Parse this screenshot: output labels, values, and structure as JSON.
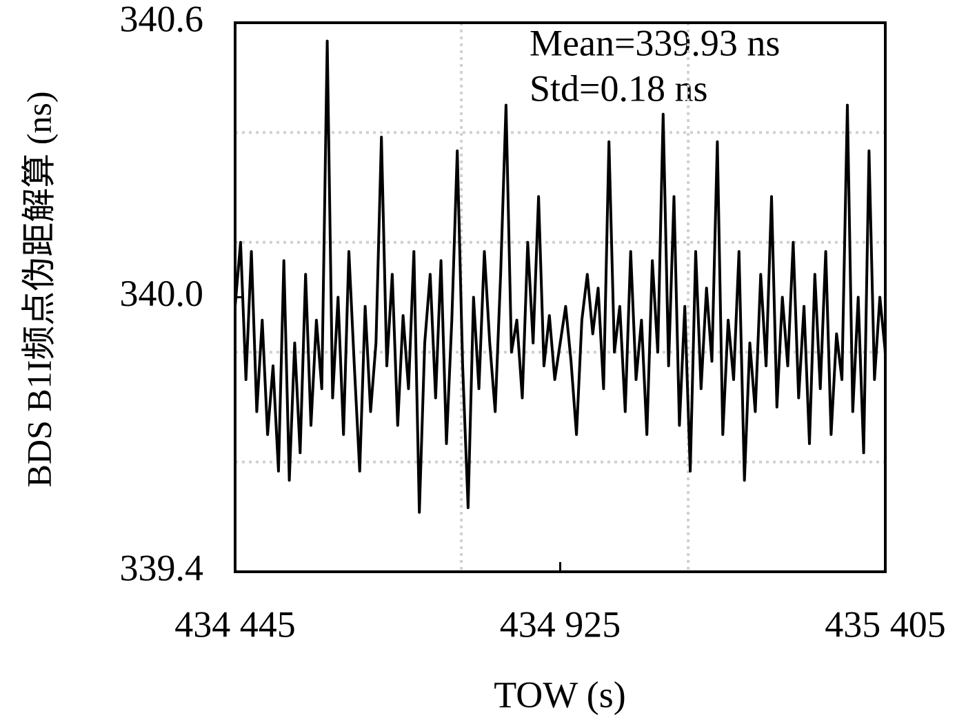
{
  "chart_data": {
    "type": "line",
    "x_label": "TOW (s)",
    "y_label": "BDS B1I频点伪距解算 (ns)",
    "annotations": [
      "Mean=339.93 ns",
      "Std=0.18 ns"
    ],
    "xlim": [
      434445,
      435405
    ],
    "ylim": [
      339.4,
      340.6
    ],
    "xticks": [
      {
        "value": 434445,
        "label": "434 445"
      },
      {
        "value": 434925,
        "label": "434 925"
      },
      {
        "value": 435405,
        "label": "435 405"
      }
    ],
    "yticks": [
      339.4,
      {
        "value": 340,
        "label": "340.0"
      },
      340.6
    ],
    "grid": true,
    "xgrid": [
      434779,
      435114
    ],
    "ygrid": [
      340.36,
      340.12,
      339.88,
      339.64
    ],
    "series": [
      {
        "color": "#000000",
        "x": [
          434445,
          434453,
          434461,
          434469,
          434477,
          434485,
          434493,
          434501,
          434509,
          434517,
          434525,
          434533,
          434541,
          434549,
          434557,
          434565,
          434573,
          434581,
          434589,
          434597,
          434605,
          434613,
          434621,
          434629,
          434637,
          434645,
          434653,
          434661,
          434669,
          434677,
          434685,
          434693,
          434701,
          434709,
          434717,
          434725,
          434733,
          434741,
          434749,
          434757,
          434765,
          434773,
          434781,
          434789,
          434797,
          434805,
          434813,
          434821,
          434829,
          434837,
          434845,
          434853,
          434861,
          434869,
          434877,
          434885,
          434893,
          434901,
          434909,
          434917,
          434925,
          434933,
          434941,
          434949,
          434957,
          434965,
          434973,
          434981,
          434989,
          434997,
          435005,
          435013,
          435021,
          435029,
          435037,
          435045,
          435053,
          435061,
          435069,
          435077,
          435085,
          435093,
          435101,
          435109,
          435117,
          435125,
          435133,
          435141,
          435149,
          435157,
          435165,
          435173,
          435181,
          435189,
          435197,
          435205,
          435213,
          435221,
          435229,
          435237,
          435245,
          435253,
          435261,
          435269,
          435277,
          435285,
          435293,
          435301,
          435309,
          435317,
          435325,
          435333,
          435341,
          435349,
          435357,
          435365,
          435373,
          435381,
          435389,
          435397,
          435405
        ],
        "values": [
          339.98,
          340.12,
          339.82,
          340.1,
          339.75,
          339.95,
          339.7,
          339.85,
          339.62,
          340.08,
          339.6,
          339.9,
          339.66,
          340.05,
          339.72,
          339.95,
          339.8,
          340.56,
          339.78,
          340.0,
          339.7,
          340.1,
          339.85,
          339.62,
          339.98,
          339.75,
          339.9,
          340.35,
          339.85,
          340.05,
          339.72,
          339.96,
          339.8,
          340.1,
          339.53,
          339.9,
          340.05,
          339.78,
          340.08,
          339.68,
          339.95,
          340.32,
          339.85,
          339.54,
          340.0,
          339.8,
          340.1,
          339.9,
          339.75,
          340.05,
          340.42,
          339.88,
          339.95,
          339.78,
          340.12,
          339.9,
          340.22,
          339.85,
          339.96,
          339.82,
          339.9,
          339.98,
          339.86,
          339.7,
          339.95,
          340.05,
          339.92,
          340.02,
          339.8,
          340.34,
          339.88,
          339.98,
          339.75,
          340.1,
          339.82,
          339.95,
          339.7,
          340.08,
          339.88,
          340.4,
          339.85,
          340.22,
          339.72,
          339.98,
          339.62,
          340.1,
          339.8,
          340.02,
          339.86,
          340.34,
          339.7,
          339.95,
          339.82,
          340.1,
          339.6,
          339.9,
          339.75,
          340.05,
          339.85,
          340.22,
          339.76,
          340.0,
          339.85,
          340.12,
          339.78,
          339.98,
          339.68,
          340.05,
          339.8,
          340.1,
          339.7,
          339.92,
          339.82,
          340.42,
          339.75,
          340.0,
          339.66,
          340.32,
          339.82,
          340.0,
          339.88
        ]
      }
    ]
  }
}
